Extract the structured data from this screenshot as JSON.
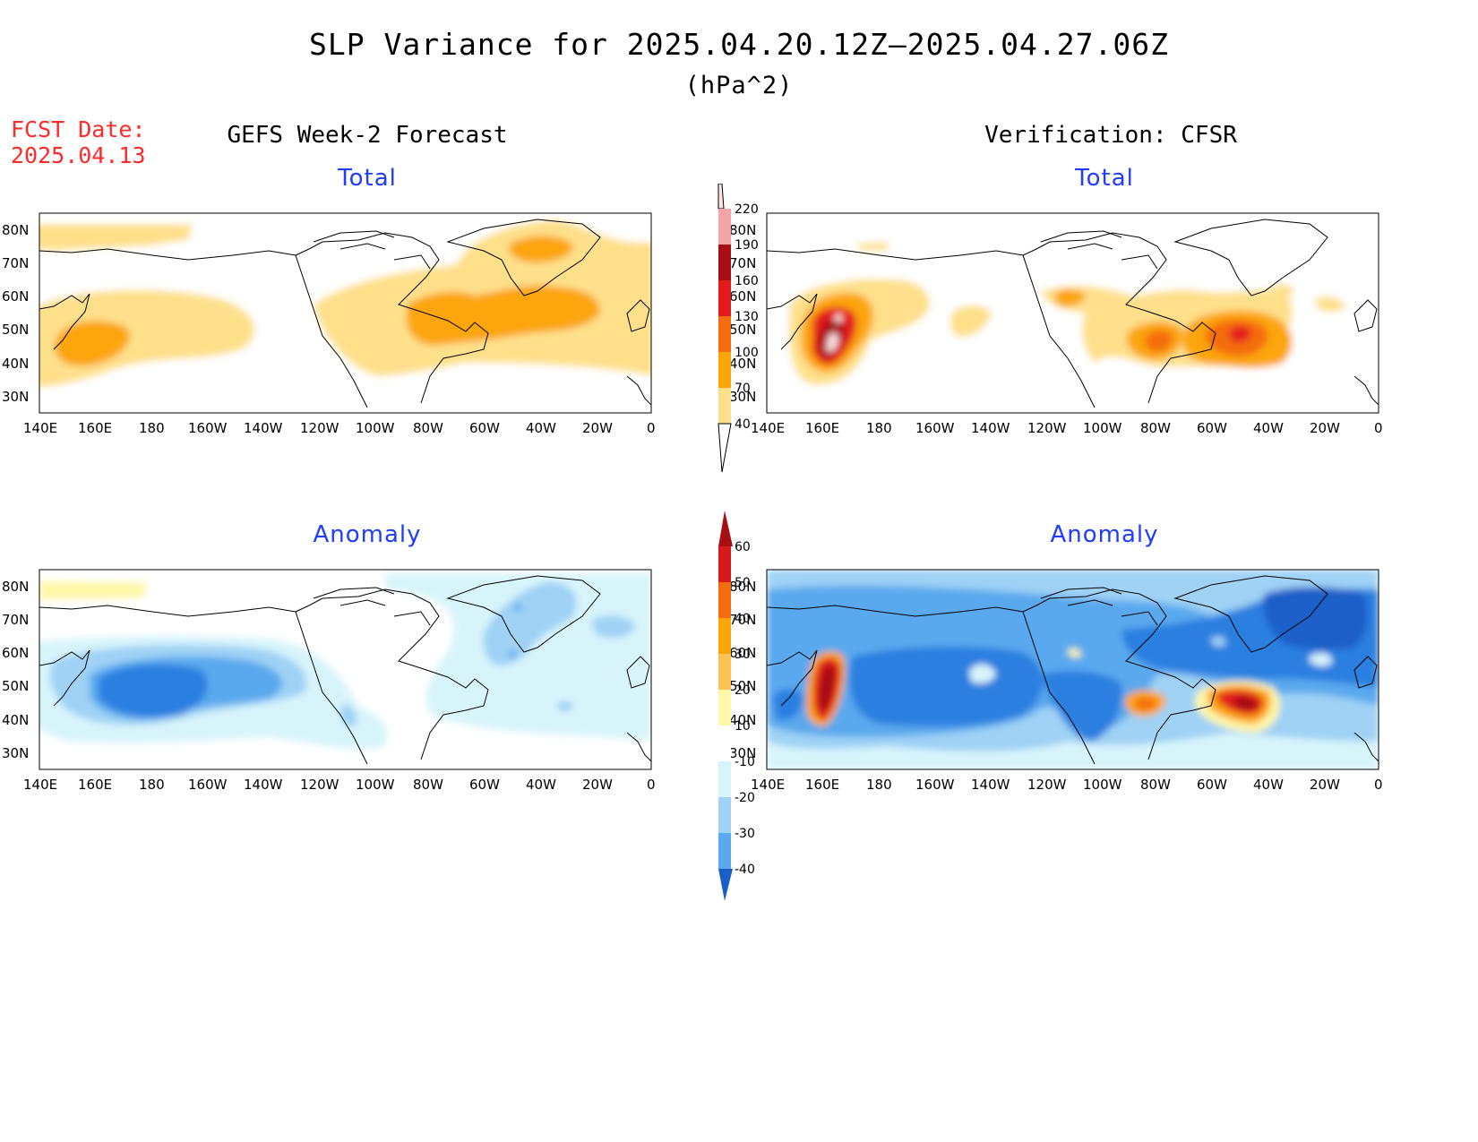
{
  "header": {
    "title": "SLP Variance for 2025.04.20.12Z—2025.04.27.06Z",
    "units": "(hPa^2)",
    "fcst_label": "FCST Date:",
    "fcst_date": "2025.04.13"
  },
  "columns": {
    "left": "GEFS Week-2 Forecast",
    "right": "Verification: CFSR"
  },
  "panels": {
    "total_label": "Total",
    "anomaly_label": "Anomaly"
  },
  "axes": {
    "lat_ticks": [
      "80N",
      "70N",
      "60N",
      "50N",
      "40N",
      "30N"
    ],
    "lon_ticks": [
      "140E",
      "160E",
      "180",
      "160W",
      "140W",
      "120W",
      "100W",
      "80W",
      "60W",
      "40W",
      "20W",
      "0"
    ]
  },
  "colorbars": {
    "total": {
      "levels": [
        "40",
        "70",
        "100",
        "130",
        "160",
        "190",
        "220"
      ],
      "colors": [
        "#fee08b",
        "#fca50a",
        "#f46d0e",
        "#e31a1c",
        "#a50f15",
        "#f4a3a8",
        "#fde0e0"
      ]
    },
    "anomaly": {
      "levels": [
        "60",
        "50",
        "40",
        "30",
        "20",
        "10",
        "-10",
        "-20",
        "-30",
        "-40"
      ],
      "colors": [
        "#a50f15",
        "#d7191c",
        "#f46d0e",
        "#fca50a",
        "#fdc453",
        "#fff7a8",
        "#ffffff",
        "#d8f4fb",
        "#9fd2f5",
        "#5aa9ee",
        "#2b7fe0",
        "#1a5fc8"
      ]
    }
  }
}
